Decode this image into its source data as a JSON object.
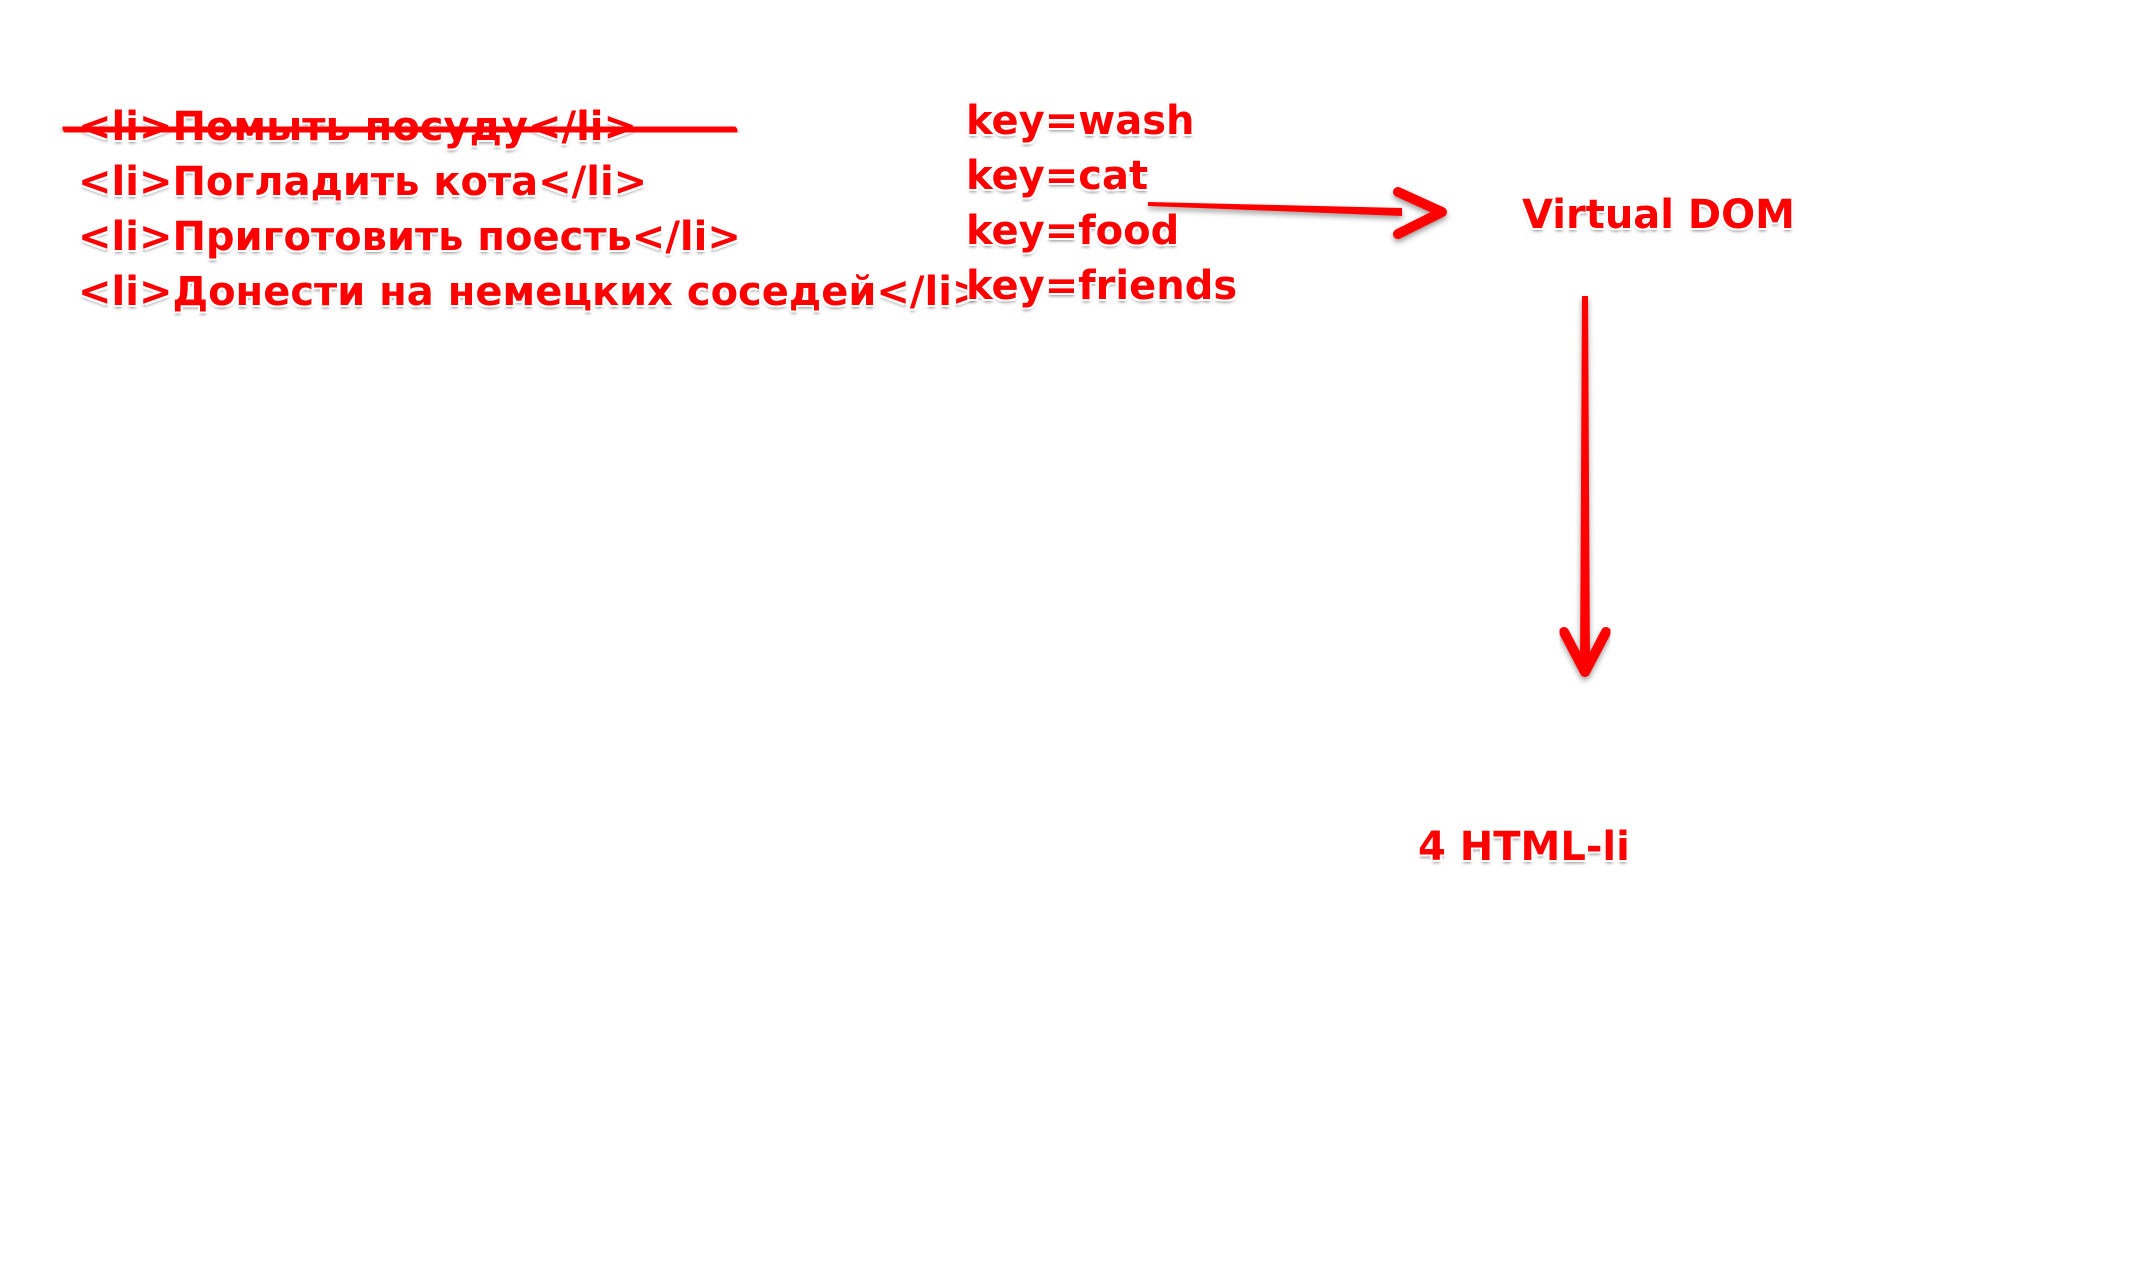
{
  "colors": {
    "annotation": "#ff0000",
    "background": "#ffffff"
  },
  "li_items": [
    {
      "text": "<li>Помыть посуду</li>",
      "struck_through": true
    },
    {
      "text": "<li>Погладить кота</li>",
      "struck_through": false
    },
    {
      "text": "<li>Приготовить поесть</li>",
      "struck_through": false
    },
    {
      "text": "<li>Донести на немецких соседей</li>",
      "struck_through": false
    }
  ],
  "keys": [
    "key=wash",
    "key=cat",
    "key=food",
    "key=friends"
  ],
  "virtual_dom_label": "Virtual DOM",
  "result_label": "4 HTML-li"
}
